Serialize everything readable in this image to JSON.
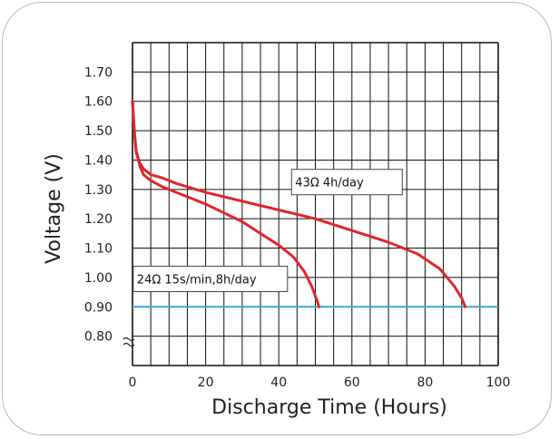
{
  "chart_data": {
    "type": "line",
    "title": "",
    "xlabel": "Discharge Time (Hours)",
    "ylabel": "Voltage (V)",
    "xlim": [
      0,
      100
    ],
    "ylim": [
      0.8,
      1.7
    ],
    "x_ticks": [
      0,
      20,
      40,
      60,
      80,
      100
    ],
    "x_tick_labels": [
      "0",
      "20",
      "40",
      "60",
      "80",
      "100"
    ],
    "y_ticks": [
      0.8,
      0.9,
      1.0,
      1.1,
      1.2,
      1.3,
      1.4,
      1.5,
      1.6,
      1.7
    ],
    "y_tick_labels": [
      "0.80",
      "0.90",
      "1.00",
      "1.10",
      "1.20",
      "1.30",
      "1.40",
      "1.50",
      "1.60",
      "1.70"
    ],
    "grid": true,
    "axis_break": "y",
    "cutoff_voltage": 0.9,
    "colors": {
      "curve": "#e0262b",
      "cutoff": "#36a9dc",
      "grid": "#111111"
    },
    "series": [
      {
        "label": "24Ω 15s/min,8h/day",
        "x": [
          0,
          0.5,
          1,
          2,
          3,
          5,
          8,
          12,
          16,
          20,
          25,
          30,
          35,
          40,
          44,
          47,
          49,
          50.5,
          51
        ],
        "y": [
          1.6,
          1.5,
          1.43,
          1.38,
          1.35,
          1.33,
          1.31,
          1.29,
          1.27,
          1.25,
          1.22,
          1.19,
          1.15,
          1.11,
          1.07,
          1.02,
          0.97,
          0.92,
          0.9
        ]
      },
      {
        "label": "43Ω  4h/day",
        "x": [
          0,
          0.5,
          1,
          2,
          3,
          5,
          8,
          12,
          20,
          30,
          40,
          50,
          60,
          70,
          78,
          84,
          88,
          90,
          91
        ],
        "y": [
          1.6,
          1.5,
          1.43,
          1.39,
          1.37,
          1.35,
          1.34,
          1.32,
          1.29,
          1.26,
          1.23,
          1.2,
          1.16,
          1.12,
          1.08,
          1.03,
          0.97,
          0.93,
          0.9
        ]
      }
    ]
  }
}
